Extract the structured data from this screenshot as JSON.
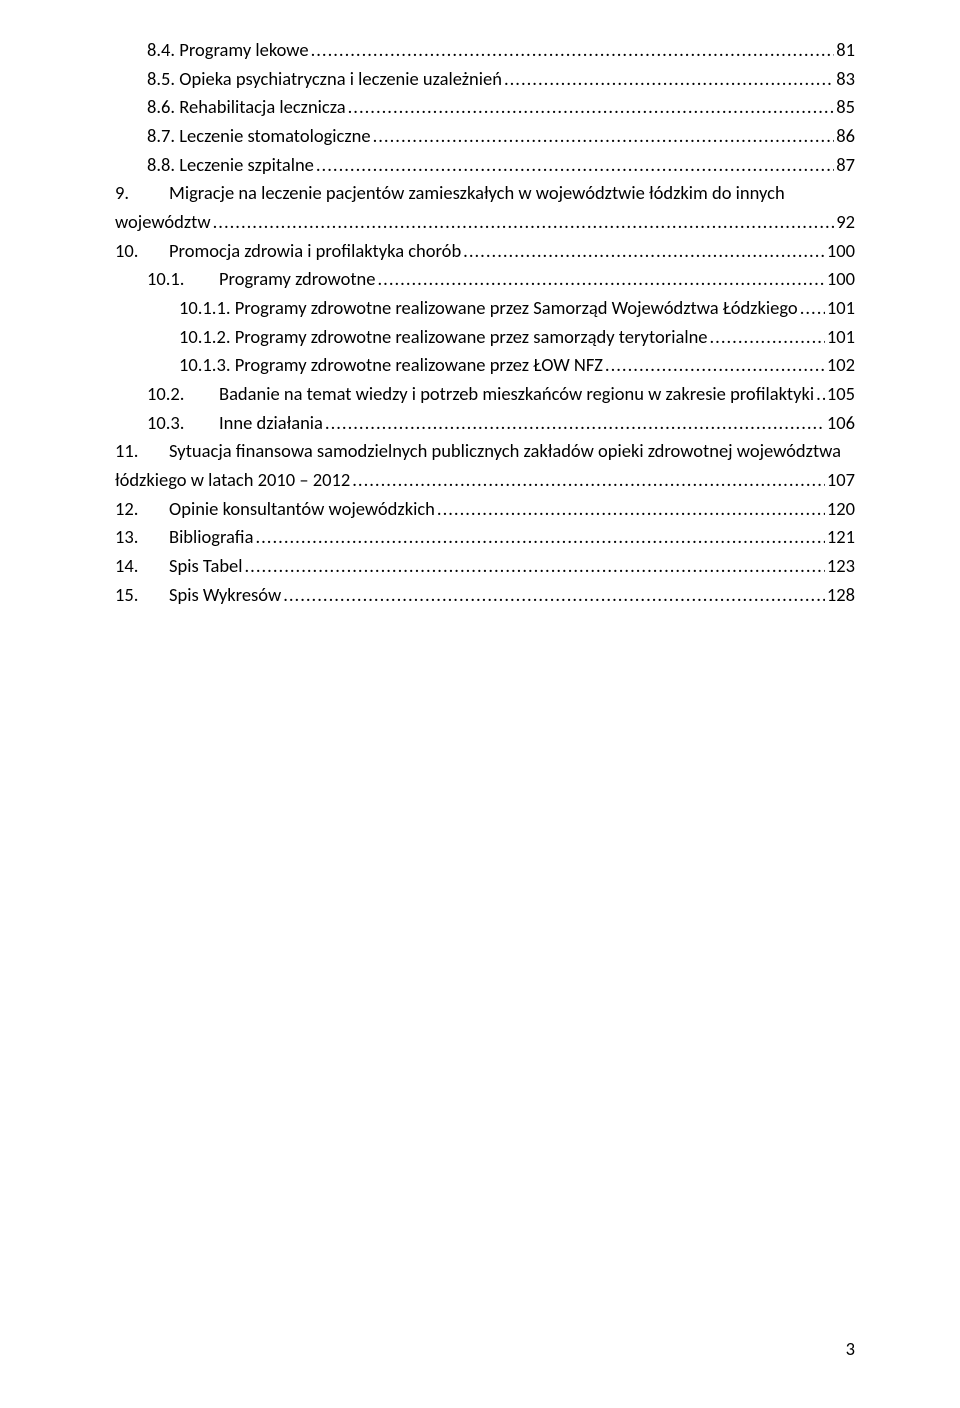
{
  "fontsize_pt": 11,
  "font_family": "Calibri",
  "text_color": "#000000",
  "background_color": "#ffffff",
  "page_number": "3",
  "entries": [
    {
      "indent": "indent-1",
      "num": "8.4.",
      "label": "Programy lekowe",
      "page": "81"
    },
    {
      "indent": "indent-1",
      "num": "8.5.",
      "label": "Opieka psychiatryczna i leczenie uzależnień",
      "page": "83"
    },
    {
      "indent": "indent-1",
      "num": "8.6.",
      "label": "Rehabilitacja lecznicza",
      "page": "85"
    },
    {
      "indent": "indent-1",
      "num": "8.7.",
      "label": "Leczenie stomatologiczne",
      "page": "86"
    },
    {
      "indent": "indent-1",
      "num": "8.8.",
      "label": "Leczenie szpitalne",
      "page": "87"
    },
    {
      "indent": "no-indent",
      "num": "9.",
      "numClass": "num-col",
      "label_pre": "Migracje na leczenie pacjentów zamieszkałych w województwie łódzkim do innych",
      "label": "województw",
      "page": "92",
      "wrap": true
    },
    {
      "indent": "no-indent",
      "num": "10.",
      "numClass": "num-col",
      "label": "Promocja zdrowia i profilaktyka chorób",
      "page": "100"
    },
    {
      "indent": "indent-2",
      "num": "10.1.",
      "numClass": "num-col-wide",
      "label": "Programy zdrowotne",
      "page": "100"
    },
    {
      "indent": "indent-3",
      "num": "10.1.1.",
      "label": "Programy zdrowotne realizowane przez Samorząd Województwa Łódzkiego",
      "page": "101",
      "tight": true
    },
    {
      "indent": "indent-3",
      "num": "10.1.2.",
      "label": "Programy zdrowotne realizowane przez samorządy terytorialne",
      "page": "101"
    },
    {
      "indent": "indent-3",
      "num": "10.1.3.",
      "label": "Programy zdrowotne realizowane przez ŁOW NFZ",
      "page": "102"
    },
    {
      "indent": "indent-2",
      "num": "10.2.",
      "numClass": "num-col-wide",
      "label": "Badanie na temat wiedzy i potrzeb mieszkańców regionu w zakresie profilaktyki",
      "page": "105"
    },
    {
      "indent": "indent-2",
      "num": "10.3.",
      "numClass": "num-col-wide",
      "label": "Inne działania",
      "page": "106"
    },
    {
      "indent": "no-indent",
      "num": "11.",
      "numClass": "num-col",
      "label_pre": "Sytuacja finansowa samodzielnych publicznych zakładów opieki zdrowotnej województwa",
      "label": "łódzkiego w latach 2010 – 2012",
      "page": "107",
      "wrap": true
    },
    {
      "indent": "no-indent",
      "num": "12.",
      "numClass": "num-col",
      "label": "Opinie konsultantów wojewódzkich",
      "page": "120"
    },
    {
      "indent": "no-indent",
      "num": "13.",
      "numClass": "num-col",
      "label": "Bibliografia",
      "page": "121"
    },
    {
      "indent": "no-indent",
      "num": "14.",
      "numClass": "num-col",
      "label": "Spis Tabel",
      "page": "123"
    },
    {
      "indent": "no-indent",
      "num": "15.",
      "numClass": "num-col",
      "label": "Spis Wykresów",
      "page": "128"
    }
  ]
}
